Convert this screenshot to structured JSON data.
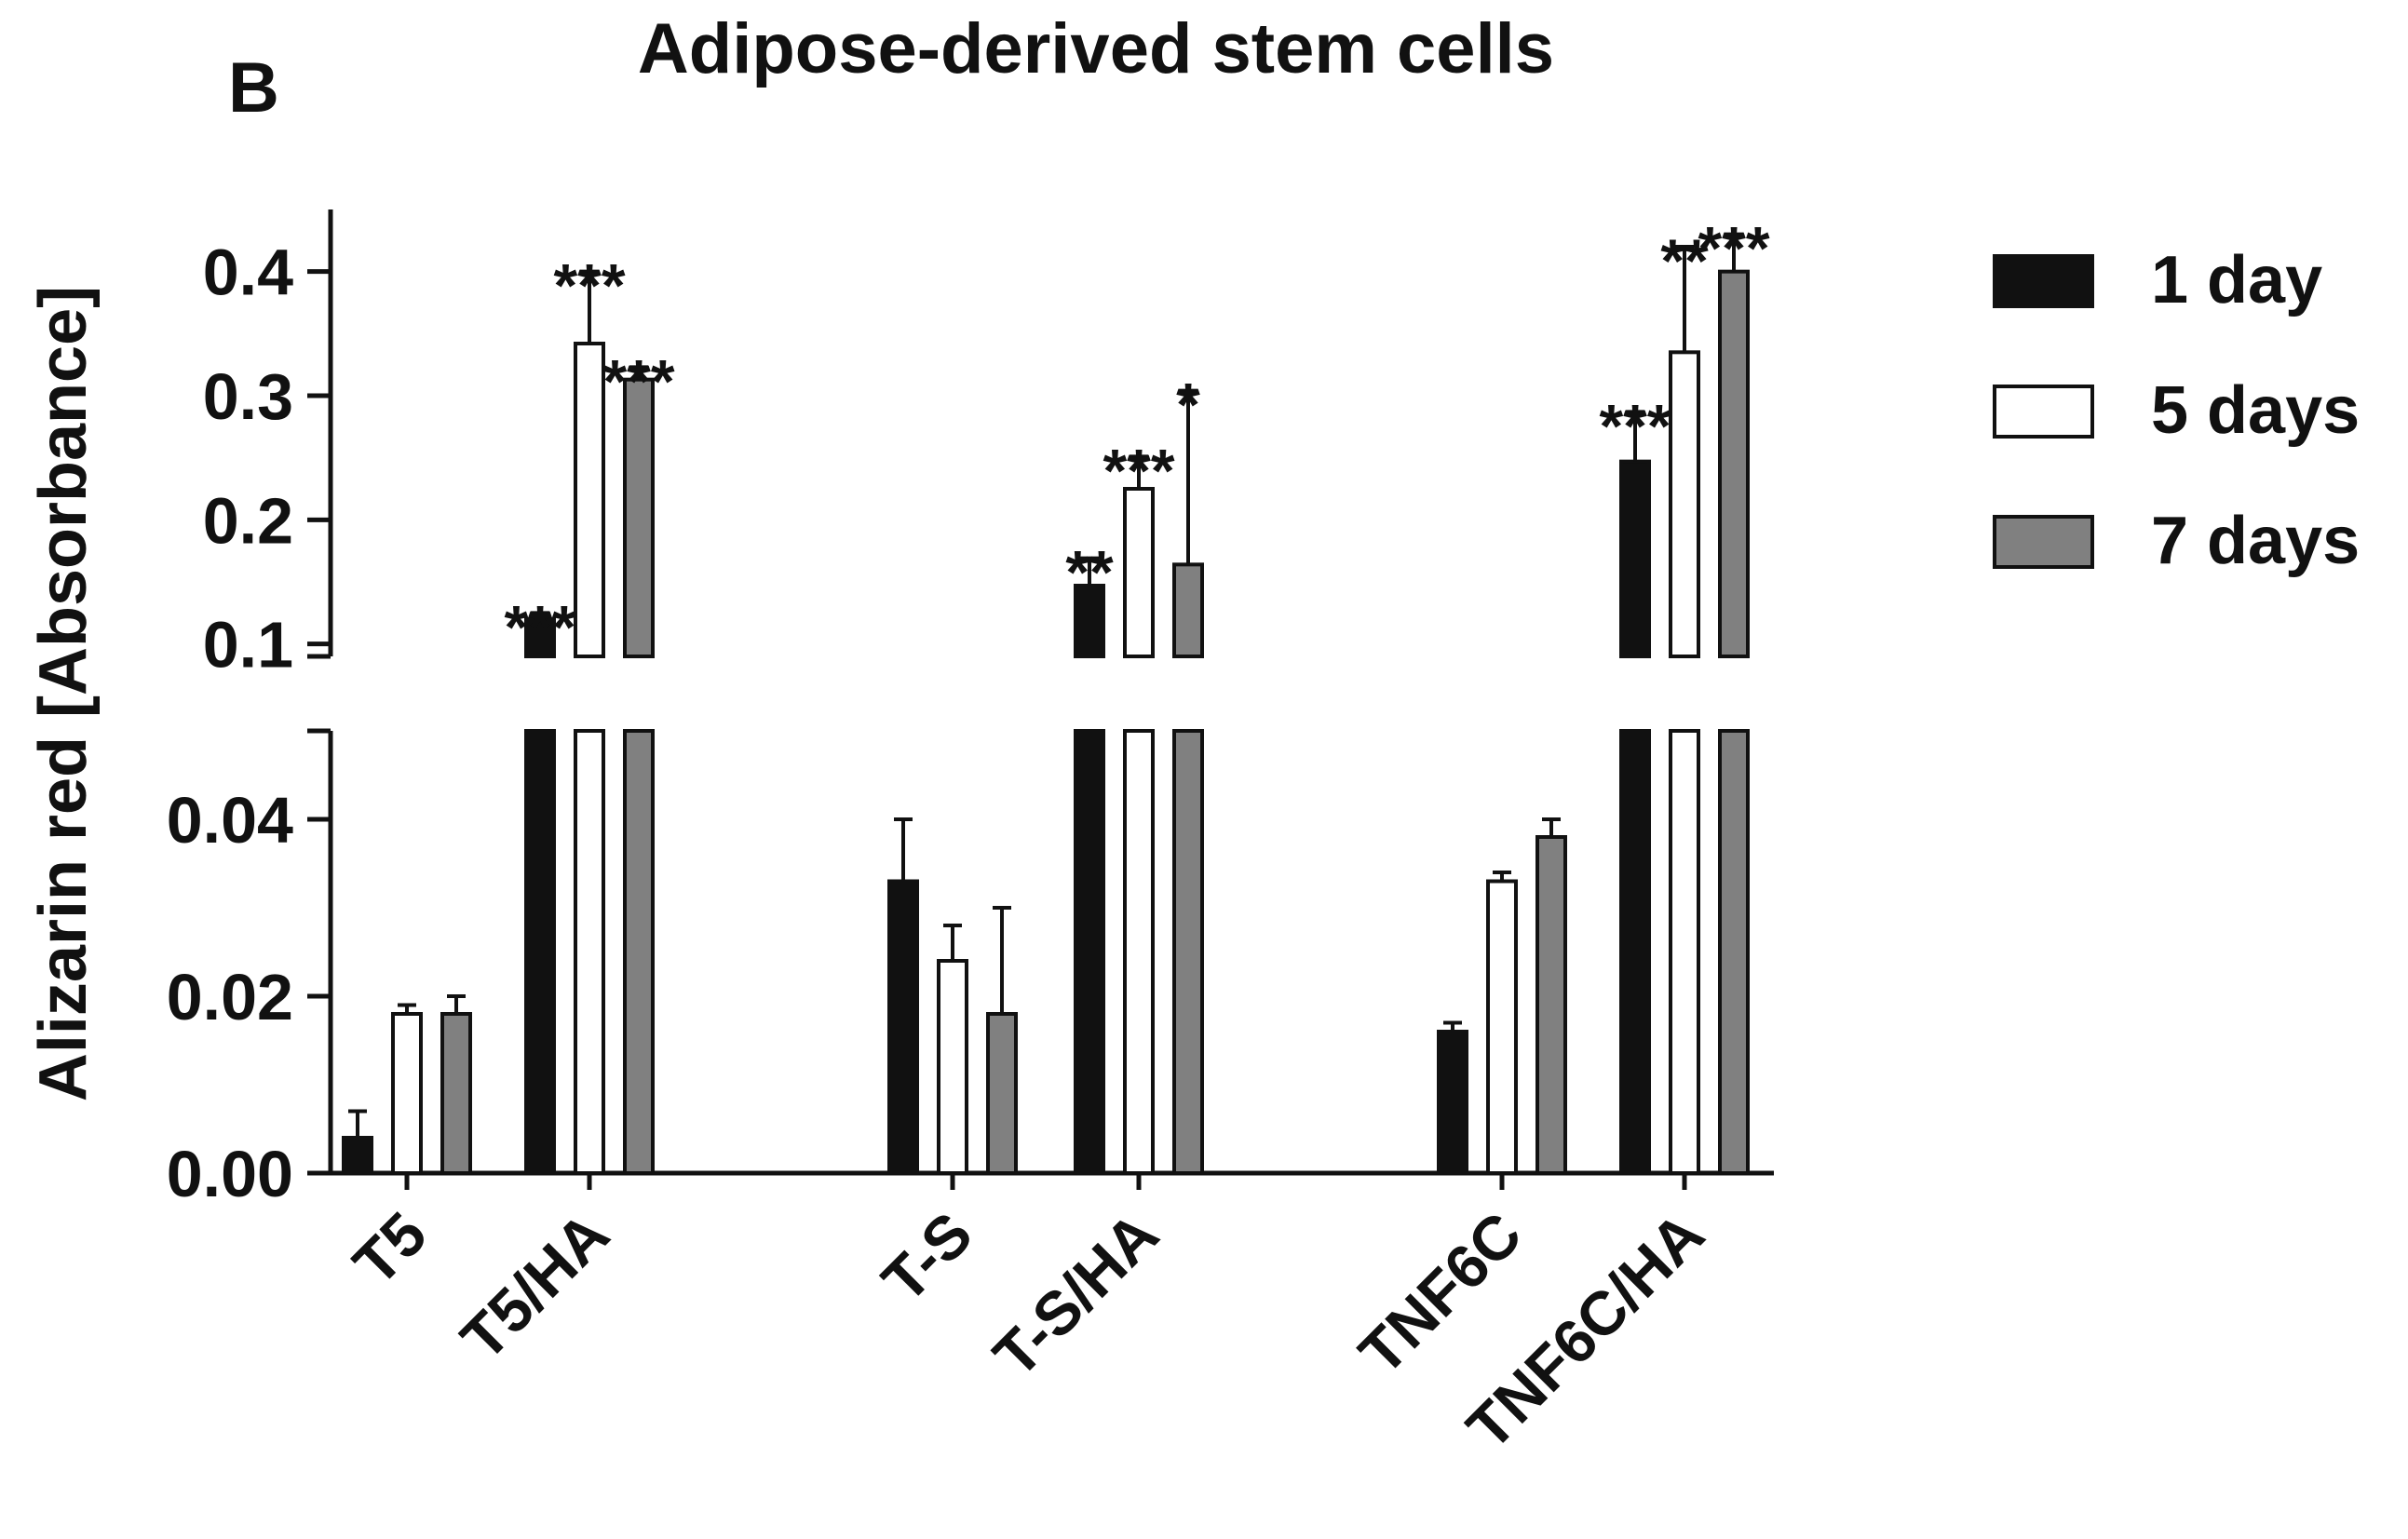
{
  "panel_label": "B",
  "chart_data": {
    "type": "bar",
    "title": "Adipose-derived stem cells",
    "xlabel": "",
    "ylabel": "Alizarin red [Absorbance]",
    "categories": [
      "T5",
      "T5/HA",
      "T-S",
      "T-S/HA",
      "TNF6C",
      "TNF6C/HA"
    ],
    "series": [
      {
        "name": "1 day",
        "color": "#111111",
        "values": [
          0.004,
          0.12,
          0.033,
          0.147,
          0.016,
          0.247
        ],
        "errors": [
          0.003,
          0.005,
          0.007,
          0.022,
          0.001,
          0.04
        ],
        "significance": [
          "",
          "***",
          "",
          "**",
          "",
          "***"
        ]
      },
      {
        "name": "5 days",
        "color": "#ffffff",
        "values": [
          0.018,
          0.342,
          0.024,
          0.225,
          0.033,
          0.335
        ],
        "errors": [
          0.001,
          0.058,
          0.004,
          0.026,
          0.001,
          0.085
        ],
        "significance": [
          "",
          "***",
          "",
          "***",
          "",
          "**"
        ]
      },
      {
        "name": "7 days",
        "color": "#808080",
        "values": [
          0.018,
          0.313,
          0.018,
          0.164,
          0.038,
          0.4
        ],
        "errors": [
          0.002,
          0.01,
          0.012,
          0.14,
          0.002,
          0.03
        ],
        "significance": [
          "",
          "***",
          "",
          "*",
          "",
          "***"
        ]
      }
    ],
    "y_axis_broken": true,
    "lower_segment": {
      "ylim": [
        0,
        0.05
      ],
      "ticks": [
        0,
        0.02,
        0.04
      ],
      "tick_labels": [
        "0.00",
        "0.02",
        "0.04"
      ]
    },
    "upper_segment": {
      "ylim": [
        0.09,
        0.45
      ],
      "ticks": [
        0.1,
        0.2,
        0.3,
        0.4
      ],
      "tick_labels": [
        "0.1",
        "0.2",
        "0.3",
        "0.4"
      ]
    },
    "grid": false,
    "legend_position": "right"
  }
}
